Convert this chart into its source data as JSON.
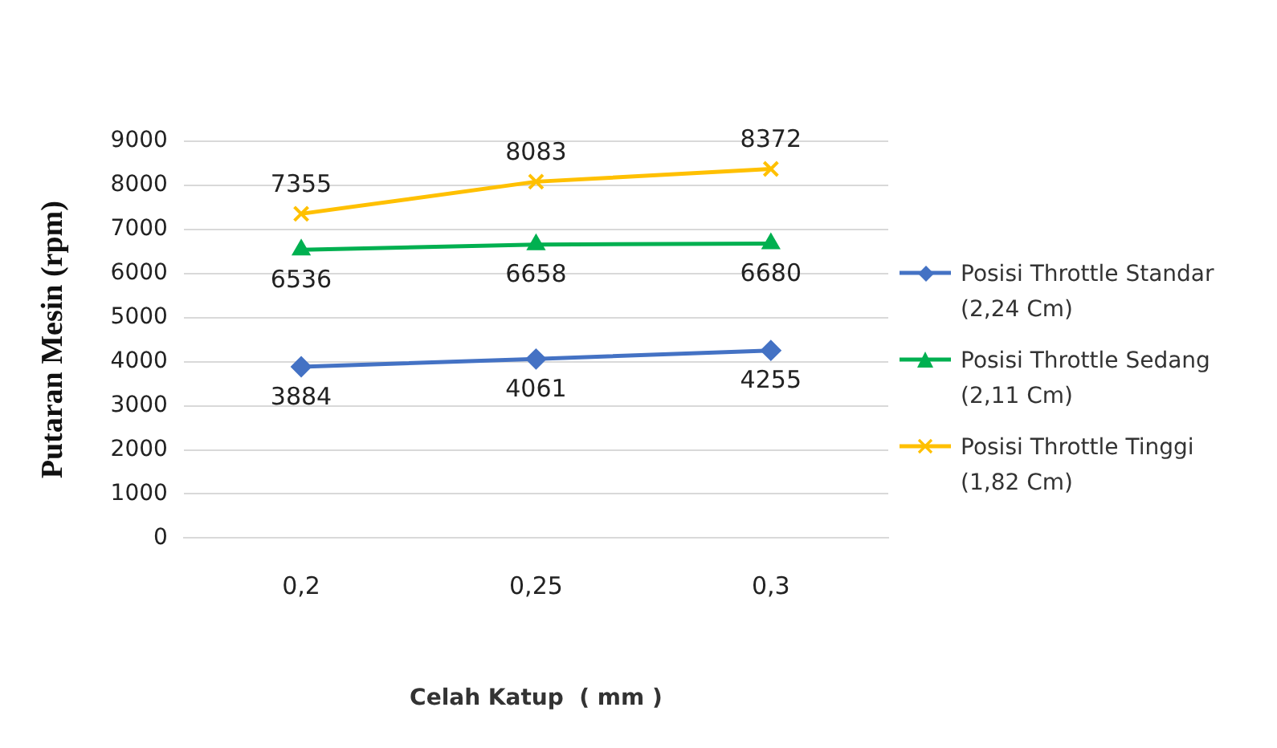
{
  "chart_data": {
    "type": "line",
    "xlabel": "Celah Katup  ( mm )",
    "ylabel": "Putaran Mesin (rpm)",
    "categories": [
      "0,2",
      "0,25",
      "0,3"
    ],
    "series": [
      {
        "name": "Posisi Throttle Standar (2,24 Cm)",
        "color": "#4472c4",
        "marker": "diamond",
        "values": [
          3884,
          4061,
          4255
        ]
      },
      {
        "name": "Posisi Throttle Sedang (2,11 Cm)",
        "color": "#00b050",
        "marker": "triangle",
        "values": [
          6536,
          6658,
          6680
        ]
      },
      {
        "name": "Posisi Throttle Tinggi (1,82 Cm)",
        "color": "#ffc000",
        "marker": "cross",
        "values": [
          7355,
          8083,
          8372
        ]
      }
    ],
    "ylim": [
      0,
      9000
    ],
    "yticks": [
      0,
      1000,
      2000,
      3000,
      4000,
      5000,
      6000,
      7000,
      8000,
      9000
    ],
    "grid": "y",
    "legend": "right",
    "data_labels": true,
    "line_style": "solid"
  }
}
